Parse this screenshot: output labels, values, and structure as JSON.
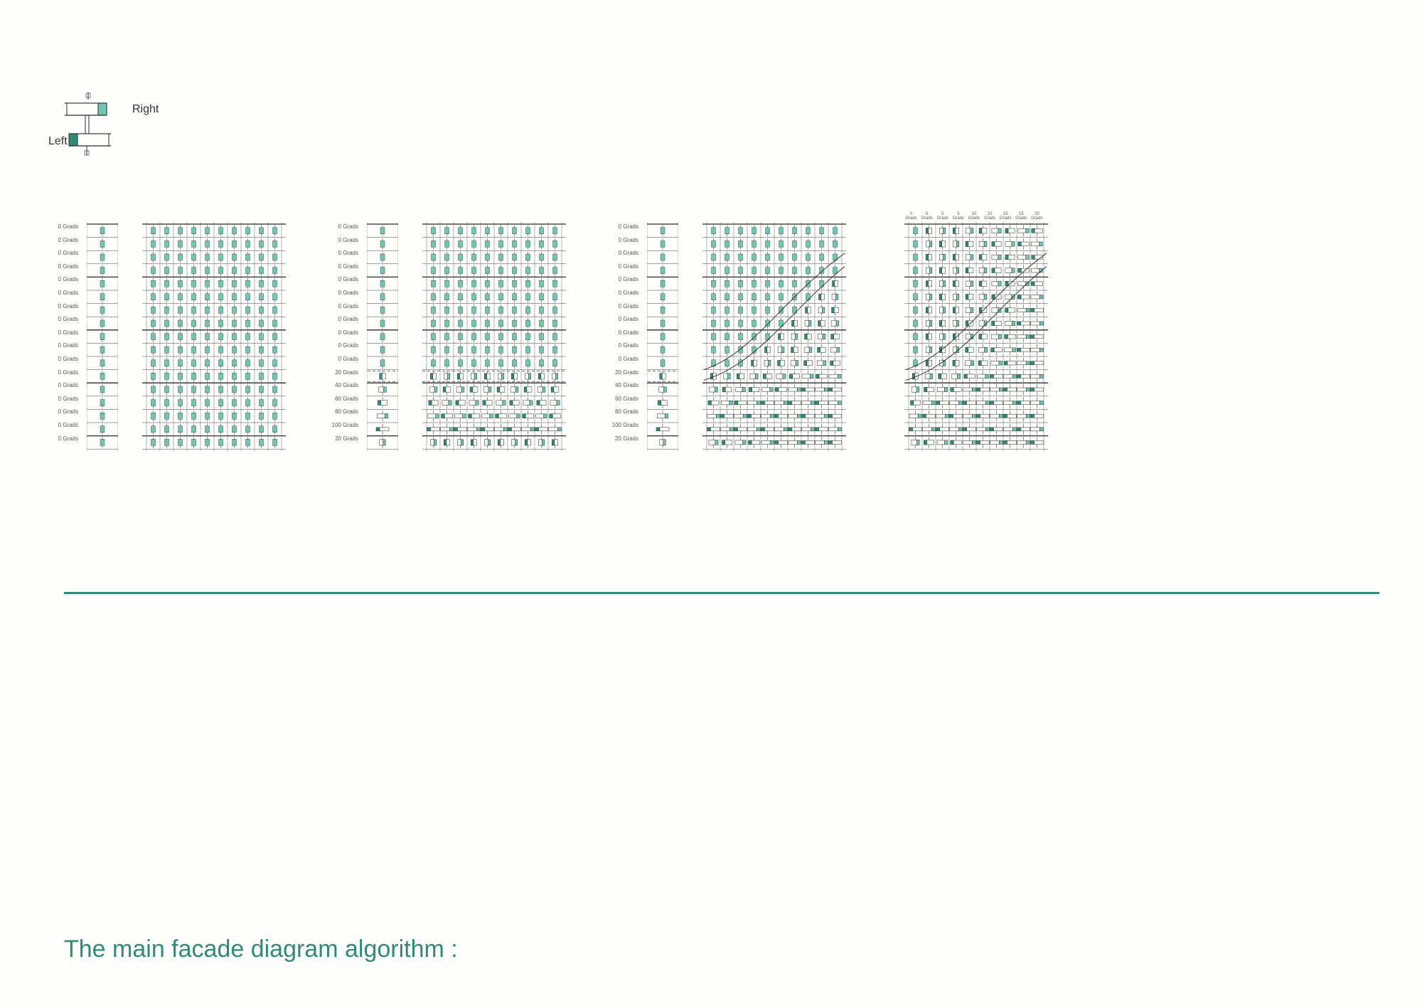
{
  "title": "The main facade diagram algorithm :",
  "legend": {
    "right": "Right",
    "left": "Left"
  },
  "colors": {
    "accent": "#6fc7b3",
    "accent_dark": "#2e8b7a",
    "line": "#2b2b2b",
    "bg": "#fefefd",
    "panel_open": "#f7f9f6",
    "text": "#555555"
  },
  "grid": {
    "rows": 17,
    "cols": 10,
    "row_h": 18.6,
    "pin_w": 6,
    "pin_h": 9
  },
  "mini": {
    "w": 44,
    "cols": 1
  },
  "large": {
    "w": 190
  },
  "groups": [
    {
      "row_labels": [
        "0 Grads",
        "0 Grads",
        "0 Grads",
        "0 Grads",
        "0 Grads",
        "0 Grads",
        "0 Grads",
        "0 Grads",
        "0 Grads",
        "0 Grads",
        "0 Grads",
        "0 Grads",
        "0 Grads",
        "0 Grads",
        "0 Grads",
        "0 Grads",
        "0 Grads"
      ],
      "mini_rot": [
        0,
        0,
        0,
        0,
        0,
        0,
        0,
        0,
        0,
        0,
        0,
        0,
        0,
        0,
        0,
        0,
        0
      ],
      "large_rot_rows": [
        0,
        0,
        0,
        0,
        0,
        0,
        0,
        0,
        0,
        0,
        0,
        0,
        0,
        0,
        0,
        0,
        0
      ],
      "has_curves": false
    },
    {
      "row_labels": [
        "0 Grads",
        "0 Grads",
        "0 Grads",
        "0 Grads",
        "0 Grads",
        "0 Grads",
        "0 Grads",
        "0 Grads",
        "0 Grads",
        "0 Grads",
        "0 Grads",
        "20 Grads",
        "40 Grads",
        "60 Grads",
        "80 Grads",
        "100 Grads",
        "20 Grads"
      ],
      "mini_rot": [
        0,
        0,
        0,
        0,
        0,
        0,
        0,
        0,
        0,
        0,
        0,
        20,
        40,
        60,
        80,
        100,
        20
      ],
      "large_rot_rows": [
        0,
        0,
        0,
        0,
        0,
        0,
        0,
        0,
        0,
        0,
        0,
        20,
        40,
        60,
        80,
        100,
        20
      ],
      "has_curves": false
    },
    {
      "row_labels": [
        "0 Grads",
        "0 Grads",
        "0 Grads",
        "0 Grads",
        "0 Grads",
        "0 Grads",
        "0 Grads",
        "0 Grads",
        "0 Grads",
        "0 Grads",
        "0 Grads",
        "20 Grads",
        "40 Grads",
        "60 Grads",
        "80 Grads",
        "100 Grads",
        "20 Grads"
      ],
      "mini_rot": [
        0,
        0,
        0,
        0,
        0,
        0,
        0,
        0,
        0,
        0,
        0,
        20,
        40,
        60,
        80,
        100,
        20
      ],
      "large_rot_rows": [
        0,
        0,
        0,
        0,
        0,
        0,
        0,
        0,
        0,
        0,
        0,
        20,
        40,
        60,
        80,
        100,
        20
      ],
      "has_curves": true,
      "curve_shift": 0
    },
    {
      "top_labels": [
        "0 Grads",
        "5 Grads",
        "5 Grads",
        "5 Grads",
        "10 Grads",
        "10 Grads",
        "15 Grads",
        "15 Grads",
        "20 Grads"
      ],
      "mini_rot": null,
      "large_rot_rows": [
        0,
        0,
        0,
        0,
        0,
        0,
        0,
        0,
        0,
        0,
        0,
        20,
        40,
        60,
        80,
        100,
        20
      ],
      "has_curves": true,
      "curve_shift": 0,
      "col_tint": [
        0,
        5,
        5,
        5,
        10,
        10,
        15,
        15,
        20,
        20
      ]
    }
  ]
}
